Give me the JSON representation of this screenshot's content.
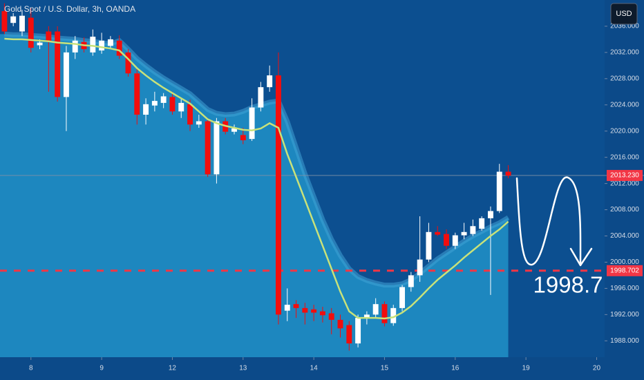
{
  "chart_data": {
    "type": "candlestick",
    "title": "Gold Spot / U.S. Dollar, 3h, OANDA",
    "currency_button": "USD",
    "up_color": "#ffffff",
    "down_color": "#f20d0d",
    "open": [
      2038.3,
      2036.5,
      2035.2,
      2037.3,
      2033.1,
      2035.2,
      2035.2,
      2025.2,
      2032.0,
      2033.6,
      2032.0,
      2032.3,
      2033.0,
      2033.8,
      2032.0,
      2028.8,
      2022.5,
      2023.9,
      2024.3,
      2025.2,
      2023.0,
      2024.1,
      2021.0,
      2021.5,
      2013.4,
      2021.5,
      2019.9,
      2019.4,
      2018.8,
      2023.6,
      2026.7,
      2028.5,
      1992.6,
      1993.6,
      1993.0,
      1992.8,
      1992.5,
      1992.2,
      1991.2,
      1990.4,
      1987.6,
      1991.5,
      1992.0,
      1993.6,
      1990.7,
      1993.0,
      1996.2,
      1998.0,
      2000.4,
      2004.6,
      2004.3,
      2002.5,
      2004.1,
      2004.3,
      2005.1,
      2006.7,
      2007.8,
      2013.8
    ],
    "high": [
      2039.5,
      2038.0,
      2038.5,
      2038.8,
      2034.0,
      2036.0,
      2036.0,
      2033.0,
      2034.5,
      2034.3,
      2035.5,
      2035.0,
      2034.5,
      2034.6,
      2032.5,
      2029.5,
      2025.0,
      2026.0,
      2025.8,
      2026.0,
      2025.0,
      2024.8,
      2022.5,
      2022.0,
      2022.0,
      2022.0,
      2021.0,
      2020.5,
      2025.0,
      2027.5,
      2030.0,
      2032.0,
      1996.0,
      1994.2,
      1993.8,
      1993.5,
      1993.2,
      1993.0,
      1992.0,
      1991.0,
      1992.0,
      1992.5,
      1994.5,
      1994.0,
      1993.5,
      1996.5,
      1998.5,
      2007.0,
      2006.0,
      2005.5,
      2005.0,
      2004.5,
      2006.0,
      2006.5,
      2007.0,
      2008.5,
      2015.0,
      2014.8
    ],
    "low": [
      2034.8,
      2036.0,
      2034.5,
      2032.0,
      2032.5,
      2026.0,
      2024.5,
      2020.0,
      2031.0,
      2032.0,
      2031.5,
      2031.8,
      2032.5,
      2031.0,
      2028.3,
      2021.0,
      2021.0,
      2023.0,
      2023.5,
      2022.5,
      2022.0,
      2020.0,
      2020.5,
      2013.0,
      2012.0,
      2019.5,
      2019.5,
      2018.0,
      2018.5,
      2023.0,
      2026.0,
      1990.5,
      1991.0,
      1991.5,
      1990.5,
      1991.0,
      1990.8,
      1989.0,
      1988.5,
      1986.5,
      1987.0,
      1990.5,
      1991.5,
      1990.2,
      1990.3,
      1992.5,
      1995.5,
      1997.0,
      2000.0,
      2004.0,
      2002.0,
      2002.0,
      2003.5,
      2004.0,
      2004.8,
      1995.0,
      2007.5,
      2012.8
    ],
    "close": [
      2035.2,
      2037.5,
      2037.6,
      2032.7,
      2033.5,
      2033.6,
      2025.2,
      2032.0,
      2033.8,
      2032.5,
      2034.4,
      2033.8,
      2034.0,
      2031.5,
      2028.8,
      2022.5,
      2024.1,
      2024.6,
      2025.3,
      2023.0,
      2024.3,
      2021.0,
      2021.5,
      2013.4,
      2021.5,
      2019.9,
      2020.4,
      2018.6,
      2023.6,
      2026.7,
      2028.5,
      1992.0,
      1993.5,
      1993.0,
      1992.3,
      1992.3,
      1991.9,
      1991.2,
      1989.9,
      1987.6,
      1991.5,
      1992.0,
      1993.6,
      1990.7,
      1993.0,
      1996.2,
      1998.0,
      2000.4,
      2004.6,
      2004.2,
      2002.5,
      2004.1,
      2004.6,
      2005.5,
      2006.7,
      2007.8,
      2013.8,
      2013.2
    ],
    "moving_average": {
      "color": "#c8e27a",
      "values": [
        2034.1,
        2034.0,
        2034.0,
        2033.9,
        2033.8,
        2033.7,
        2033.5,
        2033.4,
        2033.3,
        2033.1,
        2033.0,
        2032.8,
        2032.6,
        2032.3,
        2031.0,
        2029.6,
        2028.5,
        2027.5,
        2026.6,
        2025.8,
        2025.0,
        2024.2,
        2023.0,
        2021.8,
        2021.2,
        2020.8,
        2020.5,
        2020.2,
        2020.1,
        2020.4,
        2021.2,
        2020.5,
        2016.5,
        2013.0,
        2009.5,
        2006.0,
        2002.5,
        1999.0,
        1995.5,
        1992.5,
        1991.5,
        1991.5,
        1991.5,
        1991.4,
        1991.6,
        1992.3,
        1993.3,
        1994.6,
        1996.0,
        1997.3,
        1998.4,
        1999.5,
        2000.7,
        2001.8,
        2002.9,
        2004.0,
        2005.0,
        2006.2
      ]
    },
    "band_upper": {
      "color": "#1d87bf",
      "values": [
        2034.8,
        2034.7,
        2034.7,
        2034.6,
        2034.5,
        2034.4,
        2034.2,
        2034.1,
        2034.0,
        2033.8,
        2033.7,
        2033.5,
        2033.3,
        2033.8,
        2032.5,
        2031.1,
        2030.0,
        2029.0,
        2028.1,
        2027.3,
        2026.5,
        2025.7,
        2024.5,
        2023.3,
        2022.7,
        2022.5,
        2022.6,
        2023.0,
        2023.6,
        2024.0,
        2024.4,
        2024.6,
        2021.5,
        2017.5,
        2013.5,
        2010.0,
        2006.5,
        2003.5,
        2001.0,
        1999.0,
        1997.8,
        1997.2,
        1996.8,
        1996.5,
        1996.5,
        1996.7,
        1997.3,
        1998.3,
        1999.4,
        2000.5,
        2001.4,
        2002.3,
        2003.2,
        2004.0,
        2004.7,
        2005.4,
        2006.0,
        2006.8
      ]
    },
    "xlim": [
      -0.5,
      67.9
    ],
    "xticks": [
      {
        "value": 3,
        "label": "8"
      },
      {
        "value": 11,
        "label": "9"
      },
      {
        "value": 19,
        "label": "12"
      },
      {
        "value": 27,
        "label": "13"
      },
      {
        "value": 35,
        "label": "14"
      },
      {
        "value": 43,
        "label": "15"
      },
      {
        "value": 51,
        "label": "16"
      },
      {
        "value": 59,
        "label": "19"
      },
      {
        "value": 67,
        "label": "20"
      }
    ],
    "ylim": [
      1985.5,
      2040
    ],
    "yticks": [
      {
        "value": 1988,
        "label": "1988.000"
      },
      {
        "value": 1992,
        "label": "1992.000"
      },
      {
        "value": 1996,
        "label": "1996.000"
      },
      {
        "value": 2000,
        "label": "2000.000"
      },
      {
        "value": 2004,
        "label": "2004.000"
      },
      {
        "value": 2008,
        "label": "2008.000"
      },
      {
        "value": 2012,
        "label": "2012.000"
      },
      {
        "value": 2016,
        "label": "2016.000"
      },
      {
        "value": 2020,
        "label": "2020.000"
      },
      {
        "value": 2024,
        "label": "2024.000"
      },
      {
        "value": 2028,
        "label": "2028.000"
      },
      {
        "value": 2032,
        "label": "2032.000"
      },
      {
        "value": 2036,
        "label": "2036.000"
      }
    ],
    "price_lines": [
      {
        "value": 2013.23,
        "label": "2013.230",
        "color": "#f23645",
        "dashed": false
      },
      {
        "value": 1998.702,
        "label": "1998.702",
        "color": "#f23645",
        "dashed": true
      }
    ],
    "annotation": "1998.7"
  }
}
